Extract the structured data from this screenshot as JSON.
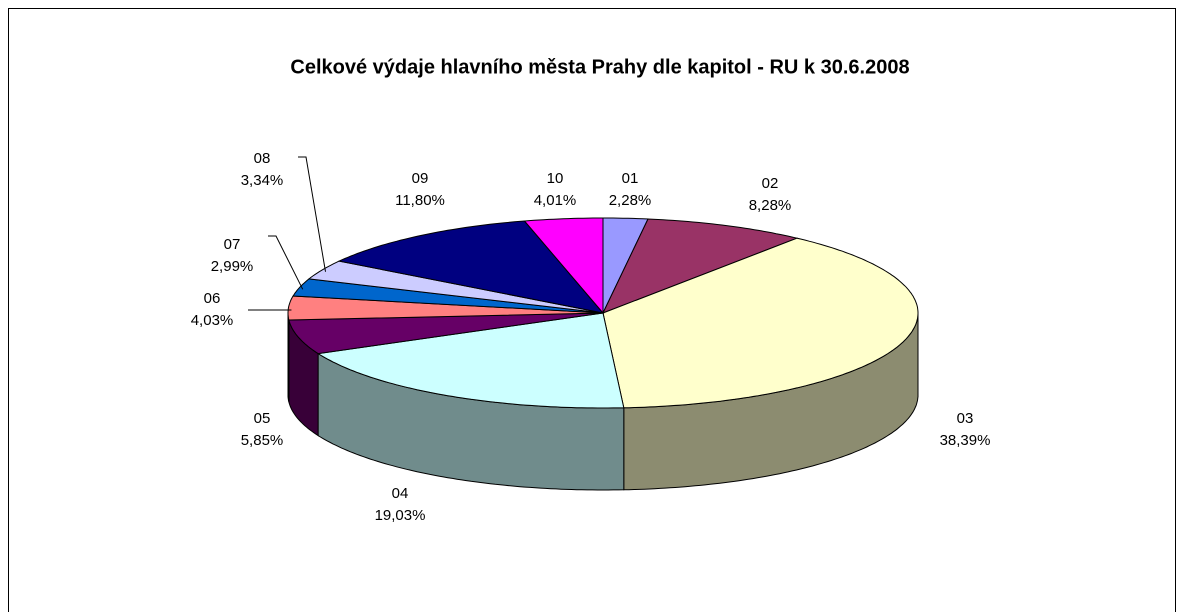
{
  "chart_data": {
    "type": "pie",
    "title": "Celkové výdaje hlavního města Prahy dle kapitol - RU k 30.6.2008",
    "categories": [
      "01",
      "02",
      "03",
      "04",
      "05",
      "06",
      "07",
      "08",
      "09",
      "10"
    ],
    "values": [
      2.28,
      8.28,
      38.39,
      19.03,
      5.85,
      4.03,
      2.99,
      3.34,
      11.8,
      4.01
    ],
    "value_labels": [
      "2,28%",
      "8,28%",
      "38,39%",
      "19,03%",
      "5,85%",
      "4,03%",
      "2,99%",
      "3,34%",
      "11,80%",
      "4,01%"
    ],
    "colors": [
      "#9999ff",
      "#993366",
      "#ffffcc",
      "#ccffff",
      "#660066",
      "#ff8080",
      "#0066cc",
      "#ccccff",
      "#000080",
      "#ff00ff"
    ]
  }
}
